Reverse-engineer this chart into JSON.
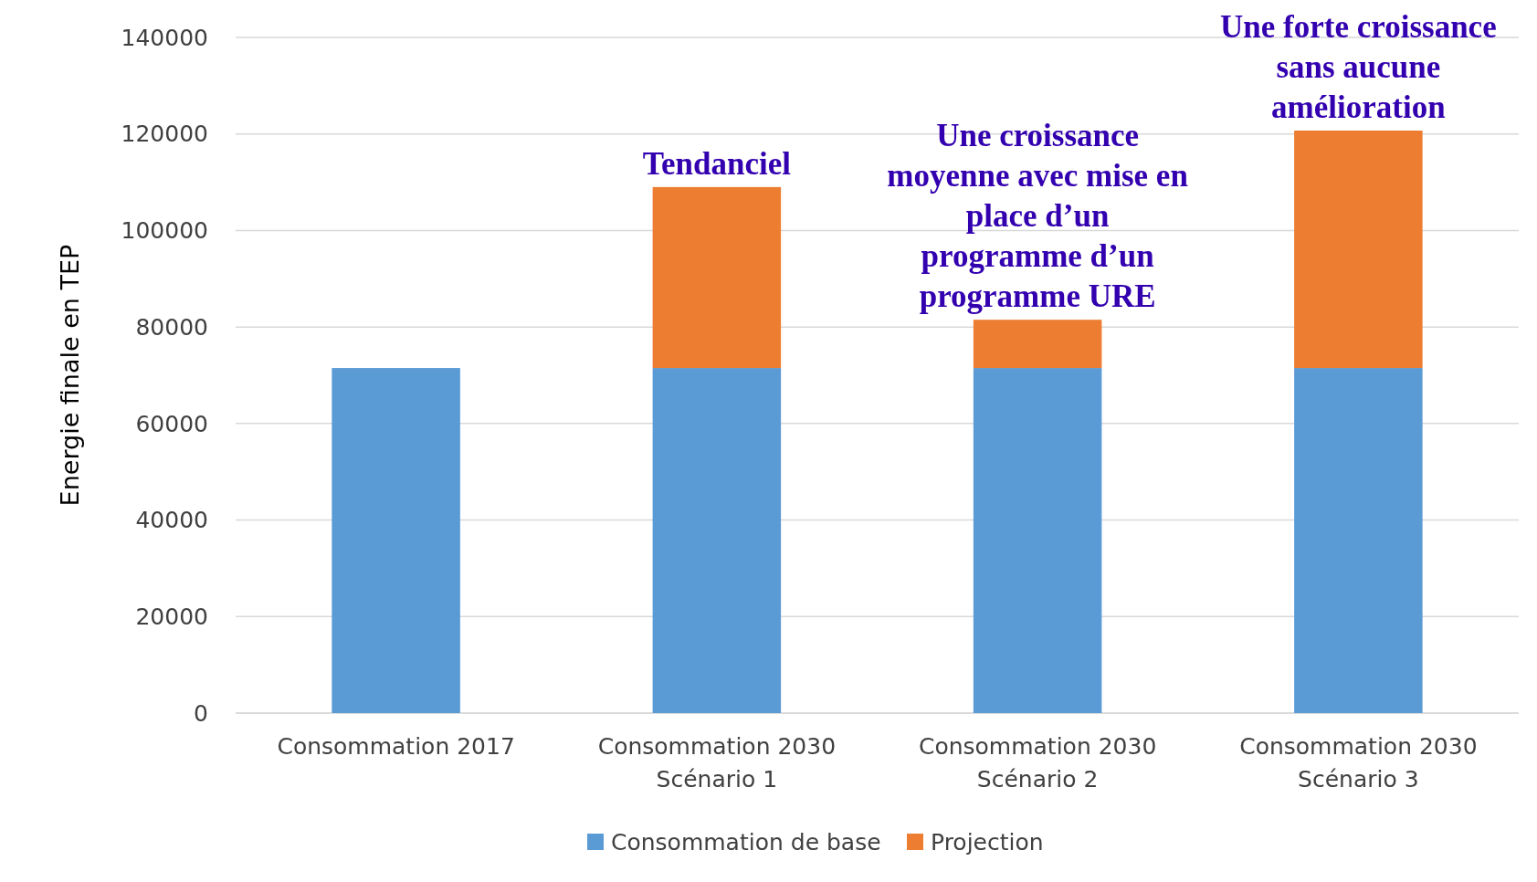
{
  "chart_data": {
    "type": "bar",
    "stacked": true,
    "ylabel": "Energie finale en TEP",
    "categories": [
      "Consommation 2017",
      "Consommation 2030\nScénario 1",
      "Consommation 2030\nScénario 2",
      "Consommation 2030\nScénario 3"
    ],
    "series": [
      {
        "name": "Consommation de base",
        "color": "#5b9bd5",
        "values": [
          71500,
          71500,
          71500,
          71500
        ]
      },
      {
        "name": "Projection",
        "color": "#ed7d31",
        "values": [
          null,
          37500,
          10000,
          49200
        ]
      }
    ],
    "ylim": [
      0,
      140000
    ],
    "yticks": [
      0,
      20000,
      40000,
      60000,
      80000,
      100000,
      120000,
      140000
    ],
    "grid": "y",
    "legend": "bottom",
    "annotations": [
      {
        "text": "Tendanciel",
        "x": "Consommation 2030\nScénario 1",
        "y": 109000
      },
      {
        "text": "Une croissance\nmoyenne avec mise en\nplace d’un\nprogramme d’un\nprogramme URE",
        "x": "Consommation 2030\nScénario 2",
        "y": 81500
      },
      {
        "text": "Une forte croissance\nsans aucune\namélioration",
        "x": "Consommation 2030\nScénario 3",
        "y": 120700
      }
    ]
  }
}
